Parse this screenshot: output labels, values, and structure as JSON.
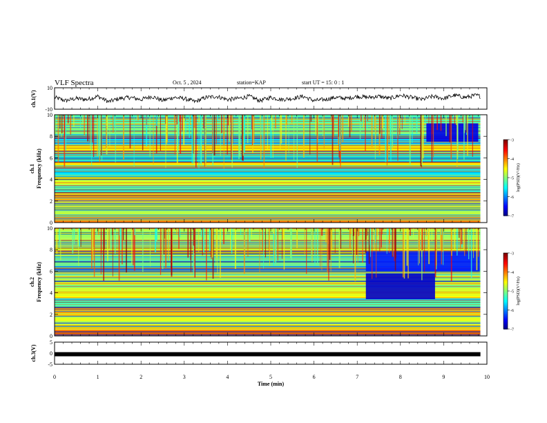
{
  "header": {
    "title": "VLF Spectra",
    "date": "Oct. 5 , 2024",
    "station": "station=KAP",
    "start": "start UT =  15: 0 : 1"
  },
  "chart_data": [
    {
      "type": "line",
      "panel": "waveform",
      "ylabel": "ch.1(V)",
      "ylim": [
        -10,
        10
      ],
      "yticks": [
        "10",
        "-10"
      ],
      "xlim": [
        0,
        10
      ],
      "series": [
        {
          "x": [
            0,
            0.25,
            0.5,
            0.75,
            1.0,
            1.25,
            1.5,
            1.75,
            2.0,
            2.25,
            2.5,
            2.75,
            3.0,
            3.25,
            3.5,
            3.75,
            4.0,
            4.25,
            4.5,
            4.75,
            5.0,
            5.25,
            5.5,
            5.75,
            6.0,
            6.25,
            6.5,
            6.75,
            7.0,
            7.25,
            7.5,
            7.75,
            8.0,
            8.25,
            8.5,
            8.75,
            9.0,
            9.25,
            9.5,
            9.75,
            9.85
          ],
          "values": [
            1,
            -2,
            0,
            -1,
            2,
            -3,
            0,
            1,
            -1,
            2,
            -2,
            1,
            0,
            -3,
            1,
            2,
            -1,
            0,
            2,
            -2,
            1,
            -1,
            0,
            2,
            -2,
            -1,
            1,
            0,
            2,
            1,
            2,
            0,
            3,
            1,
            -1,
            2,
            0,
            3,
            1,
            3,
            2
          ]
        }
      ]
    },
    {
      "type": "heatmap",
      "panel": "ch1-spectrogram",
      "ylabel": "ch.1\nFrequency (kHz)",
      "ylim": [
        0,
        10
      ],
      "yticks": [
        "0",
        "2",
        "4",
        "6",
        "8",
        "10"
      ],
      "xlim": [
        0,
        10
      ],
      "x_end_min": 9.85,
      "colorbar": {
        "label": "log(PSD)(V²/Hz)",
        "range": [
          -7,
          -3
        ],
        "ticks": [
          "-3",
          "-4",
          "-5",
          "-6",
          "-7"
        ]
      },
      "bands": [
        {
          "f": [
            0,
            0.5
          ],
          "log_psd": -4.0
        },
        {
          "f": [
            0.5,
            1.8
          ],
          "log_psd": -4.8
        },
        {
          "f": [
            1.8,
            2.8
          ],
          "log_psd": -4.2
        },
        {
          "f": [
            2.8,
            3.5
          ],
          "log_psd": -5.2
        },
        {
          "f": [
            3.5,
            4.2
          ],
          "log_psd": -4.6
        },
        {
          "f": [
            4.2,
            5.0
          ],
          "log_psd": -5.6
        },
        {
          "f": [
            5.0,
            5.6
          ],
          "log_psd": -4.4
        },
        {
          "f": [
            5.6,
            6.4
          ],
          "log_psd": -5.4
        },
        {
          "f": [
            6.4,
            7.2
          ],
          "log_psd": -4.4
        },
        {
          "f": [
            7.2,
            8.2
          ],
          "log_psd": -5.6
        },
        {
          "f": [
            8.2,
            9.0
          ],
          "log_psd": -5.0
        },
        {
          "f": [
            9.0,
            10.0
          ],
          "log_psd": -5.2
        }
      ],
      "quiet_regions": [
        {
          "t": [
            8.6,
            9.8
          ],
          "f": [
            7.5,
            9.2
          ],
          "log_psd": -6.6
        }
      ]
    },
    {
      "type": "heatmap",
      "panel": "ch2-spectrogram",
      "ylabel": "ch.2\nFrequency (kHz)",
      "ylim": [
        0,
        10
      ],
      "yticks": [
        "0",
        "2",
        "4",
        "6",
        "8",
        "10"
      ],
      "xlim": [
        0,
        10
      ],
      "x_end_min": 9.85,
      "colorbar": {
        "label": "log(PSD)(V²/Hz)",
        "range": [
          -7,
          -3
        ],
        "ticks": [
          "-3",
          "-4",
          "-5",
          "-6",
          "-7"
        ]
      },
      "bands": [
        {
          "f": [
            0,
            0.6
          ],
          "log_psd": -4.0
        },
        {
          "f": [
            0.6,
            1.8
          ],
          "log_psd": -4.6
        },
        {
          "f": [
            1.8,
            2.6
          ],
          "log_psd": -4.3
        },
        {
          "f": [
            2.6,
            3.5
          ],
          "log_psd": -5.2
        },
        {
          "f": [
            3.5,
            4.2
          ],
          "log_psd": -4.5
        },
        {
          "f": [
            4.2,
            5.6
          ],
          "log_psd": -4.7
        },
        {
          "f": [
            5.6,
            6.2
          ],
          "log_psd": -5.0
        },
        {
          "f": [
            6.2,
            7.4
          ],
          "log_psd": -5.2
        },
        {
          "f": [
            7.4,
            9.0
          ],
          "log_psd": -4.7
        },
        {
          "f": [
            9.0,
            10.0
          ],
          "log_psd": -4.9
        }
      ],
      "quiet_regions": [
        {
          "t": [
            7.2,
            9.85
          ],
          "f": [
            6.0,
            7.8
          ],
          "log_psd": -6.4
        },
        {
          "t": [
            7.2,
            8.8
          ],
          "f": [
            3.4,
            5.8
          ],
          "log_psd": -6.7
        }
      ]
    },
    {
      "type": "line",
      "panel": "ch3",
      "ylabel": "ch.3(V)",
      "ylim": [
        -5,
        5
      ],
      "yticks": [
        "5",
        "0",
        "-5"
      ],
      "xlim": [
        0,
        10
      ],
      "series": [
        {
          "x": [
            0,
            9.85
          ],
          "values": [
            0,
            0
          ]
        }
      ]
    }
  ],
  "xaxis": {
    "label": "Time (min)",
    "ticks": [
      "0",
      "1",
      "2",
      "3",
      "4",
      "5",
      "6",
      "7",
      "8",
      "9",
      "10"
    ]
  },
  "colors": {
    "line": "#000000",
    "axis": "#000000",
    "background": "#ffffff"
  }
}
